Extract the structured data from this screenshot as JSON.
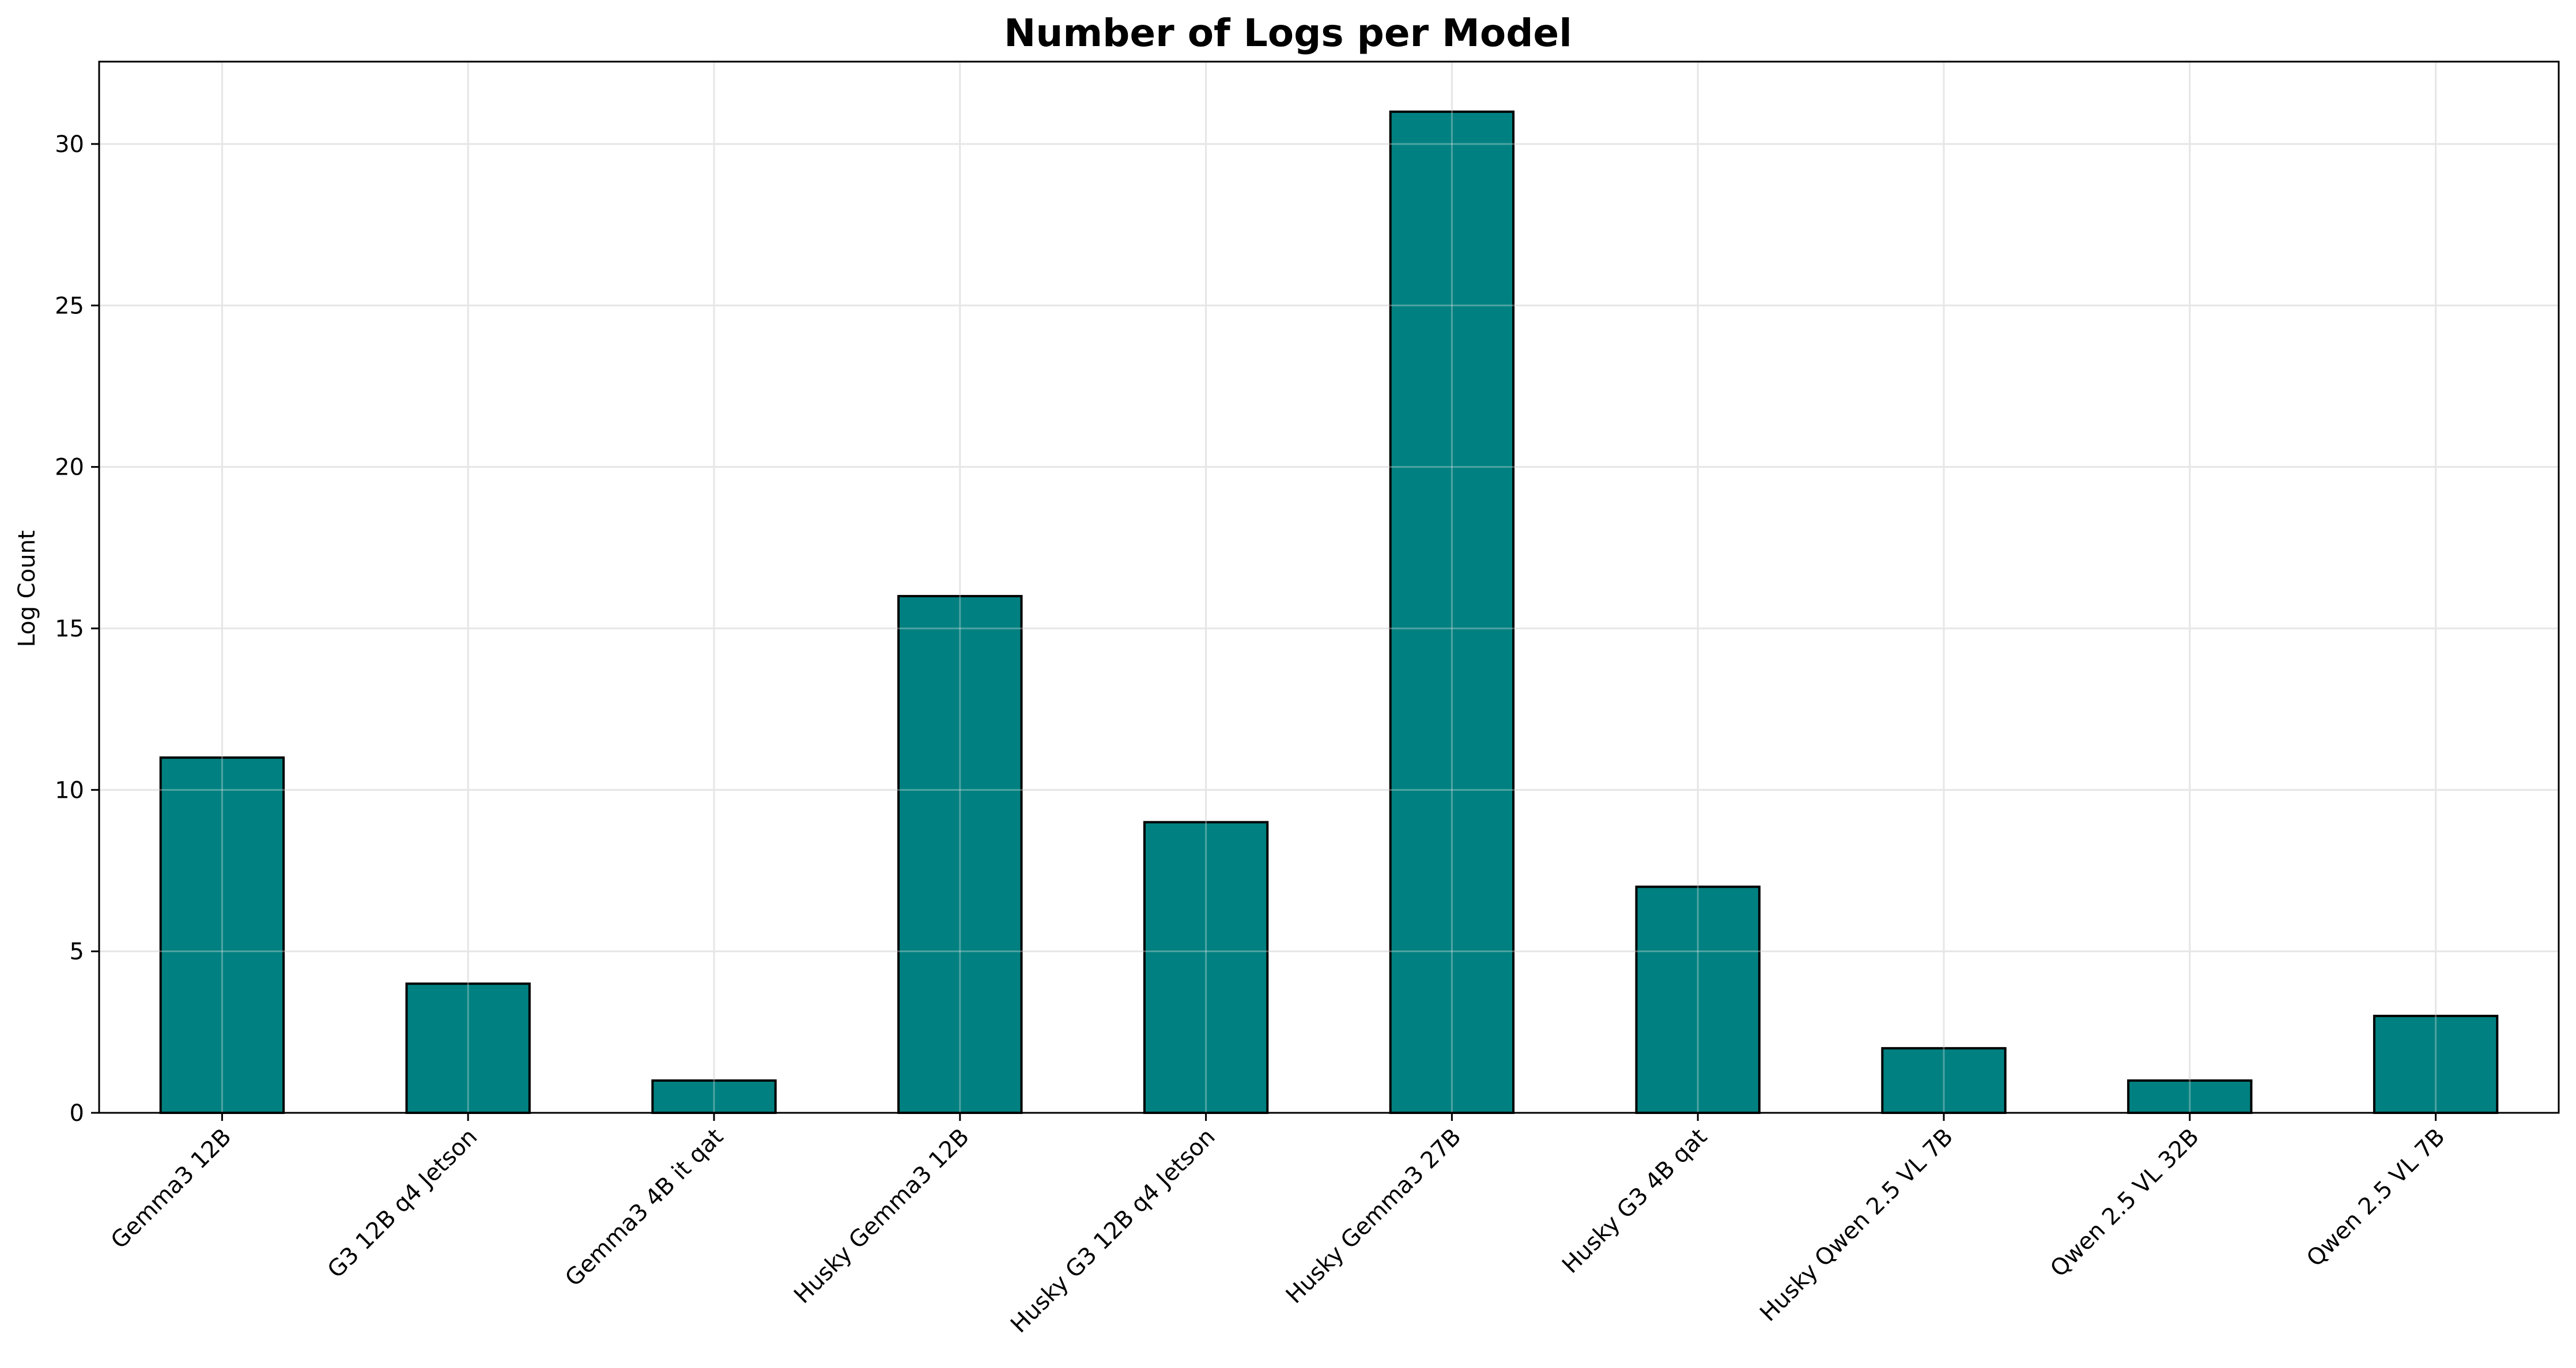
{
  "chart_data": {
    "type": "bar",
    "title": "Number of Logs per Model",
    "xlabel": "",
    "ylabel": "Log Count",
    "categories": [
      "Gemma3 12B",
      "G3 12B q4 Jetson",
      "Gemma3 4B it qat",
      "Husky Gemma3 12B",
      "Husky G3 12B q4 Jetson",
      "Husky Gemma3 27B",
      "Husky G3 4B qat",
      "Husky Qwen 2.5 VL 7B",
      "Qwen 2.5 VL 32B",
      "Qwen 2.5 VL 7B"
    ],
    "values": [
      11,
      4,
      1,
      16,
      9,
      31,
      7,
      2,
      1,
      3
    ],
    "ylim": [
      0,
      32.55
    ],
    "yticks": [
      0,
      5,
      10,
      15,
      20,
      25,
      30
    ],
    "grid": true,
    "legend": false,
    "colors": {
      "bar_fill": "#008080",
      "bar_edge": "#000000",
      "grid": "#e6e6e6",
      "axis": "#000000",
      "background": "#ffffff"
    }
  }
}
